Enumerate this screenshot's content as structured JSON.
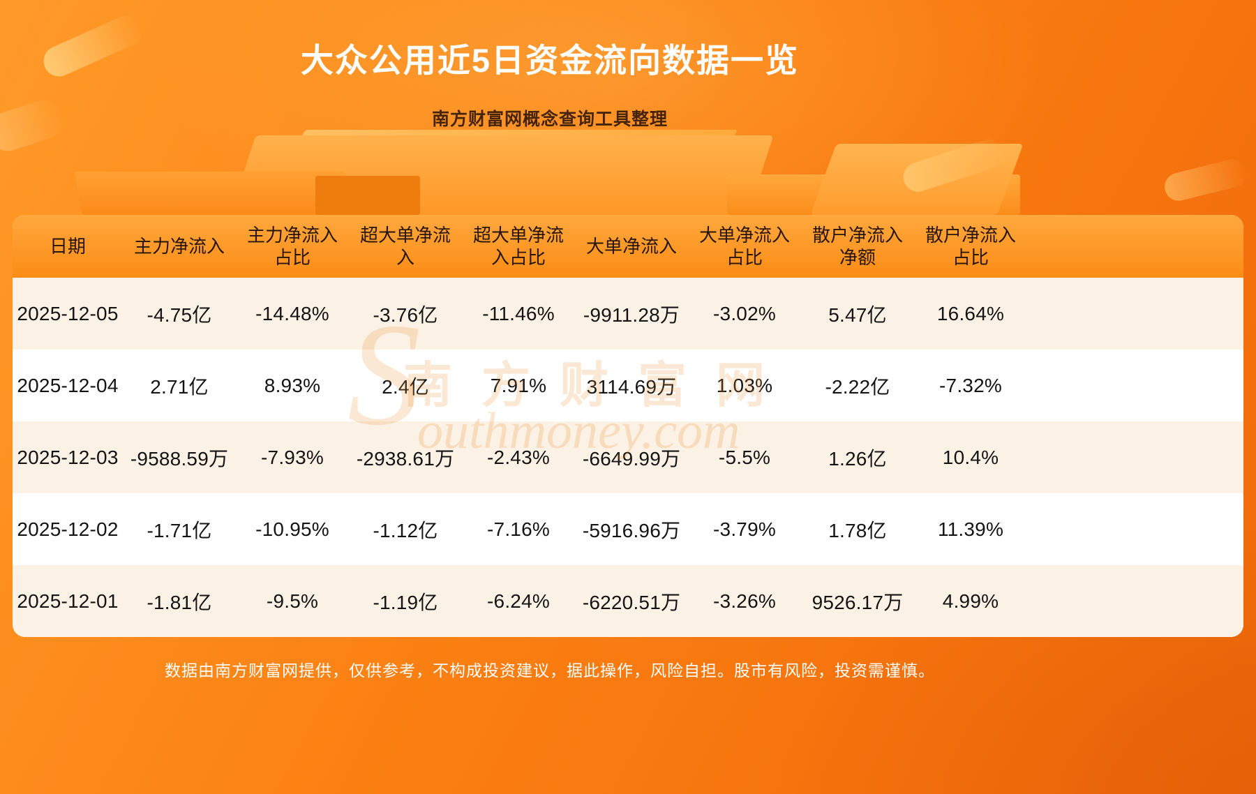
{
  "header": {
    "title": "大众公用近5日资金流向数据一览",
    "subtitle": "南方财富网概念查询工具整理"
  },
  "watermark": {
    "cn": "南方财富网",
    "big_letter": "S",
    "en": "outhmoney.com"
  },
  "footer": {
    "disclaimer": "数据由南方财富网提供，仅供参考，不构成投资建议，据此操作，风险自担。股市有风险，投资需谨慎。"
  },
  "colors": {
    "background_top": "#ff9a28",
    "background_bottom": "#f0690a",
    "table_header_bg": "#fb8c15",
    "row_odd": "#fbf1e4",
    "row_even": "#ffffff",
    "header_text": "#27150a",
    "cell_text": "#141414",
    "title_text": "#ffffff",
    "subtitle_text": "#46240a"
  },
  "chart_data": {
    "type": "table",
    "title": "大众公用近5日资金流向数据一览",
    "columns": [
      "日期",
      "主力净流入",
      "主力净流入占比",
      "超大单净流入",
      "超大单净流入占比",
      "大单净流入",
      "大单净流入占比",
      "散户净流入净额",
      "散户净流入占比"
    ],
    "rows": [
      [
        "2025-12-05",
        "-4.75亿",
        "-14.48%",
        "-3.76亿",
        "-11.46%",
        "-9911.28万",
        "-3.02%",
        "5.47亿",
        "16.64%"
      ],
      [
        "2025-12-04",
        "2.71亿",
        "8.93%",
        "2.4亿",
        "7.91%",
        "3114.69万",
        "1.03%",
        "-2.22亿",
        "-7.32%"
      ],
      [
        "2025-12-03",
        "-9588.59万",
        "-7.93%",
        "-2938.61万",
        "-2.43%",
        "-6649.99万",
        "-5.5%",
        "1.26亿",
        "10.4%"
      ],
      [
        "2025-12-02",
        "-1.71亿",
        "-10.95%",
        "-1.12亿",
        "-7.16%",
        "-5916.96万",
        "-3.79%",
        "1.78亿",
        "11.39%"
      ],
      [
        "2025-12-01",
        "-1.81亿",
        "-9.5%",
        "-1.19亿",
        "-6.24%",
        "-6220.51万",
        "-3.26%",
        "9526.17万",
        "4.99%"
      ]
    ]
  }
}
